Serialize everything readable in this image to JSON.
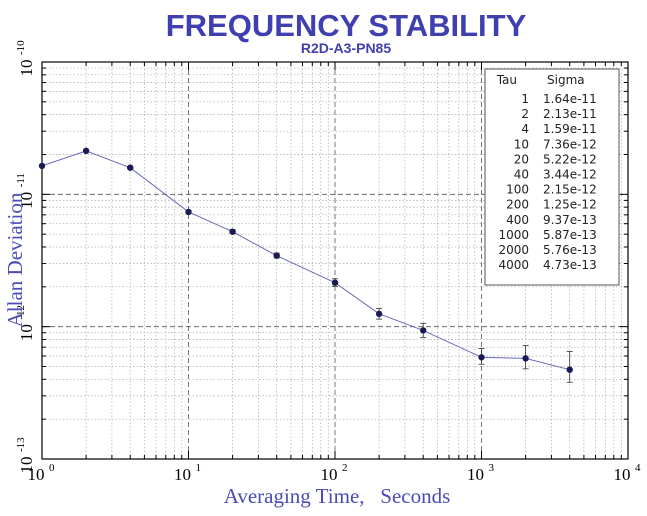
{
  "chart_data": {
    "type": "line",
    "title": "FREQUENCY STABILITY",
    "subtitle": "R2D-A3-PN85",
    "xlabel": "Averaging Time,   Seconds",
    "ylabel": "Allan Deviation",
    "xscale": "log",
    "yscale": "log",
    "xlim": [
      1,
      10000
    ],
    "ylim": [
      1e-13,
      1e-10
    ],
    "x_ticks": [
      {
        "value": 1,
        "base": "10",
        "exp": "0"
      },
      {
        "value": 10,
        "base": "10",
        "exp": "1"
      },
      {
        "value": 100,
        "base": "10",
        "exp": "2"
      },
      {
        "value": 1000,
        "base": "10",
        "exp": "3"
      },
      {
        "value": 10000,
        "base": "10",
        "exp": "4"
      }
    ],
    "y_ticks": [
      {
        "value": 1e-13,
        "base": "10",
        "exp": "-13"
      },
      {
        "value": 1e-12,
        "base": "10",
        "exp": "-12"
      },
      {
        "value": 1e-11,
        "base": "10",
        "exp": "-11"
      },
      {
        "value": 1e-10,
        "base": "10",
        "exp": "-10"
      }
    ],
    "grid": true,
    "series": [
      {
        "name": "Allan Deviation",
        "color": "#6a6ab8",
        "marker_color": "#1a1a55",
        "x": [
          1,
          2,
          4,
          10,
          20,
          40,
          100,
          200,
          400,
          1000,
          2000,
          4000
        ],
        "y": [
          1.64e-11,
          2.13e-11,
          1.59e-11,
          7.36e-12,
          5.22e-12,
          3.44e-12,
          2.15e-12,
          1.25e-12,
          9.37e-13,
          5.87e-13,
          5.76e-13,
          4.73e-13
        ],
        "error_low": [
          1.63e-11,
          2.11e-11,
          1.56e-11,
          7.2e-12,
          5.05e-12,
          3.3e-12,
          2.02e-12,
          1.14e-12,
          8.3e-13,
          5.2e-13,
          4.8e-13,
          3.8e-13
        ],
        "error_high": [
          1.65e-11,
          2.15e-11,
          1.62e-11,
          7.52e-12,
          5.4e-12,
          3.6e-12,
          2.3e-12,
          1.37e-12,
          1.06e-12,
          6.85e-13,
          7.2e-13,
          6.5e-13
        ]
      }
    ],
    "legend": {
      "placement": "top-right",
      "headers": [
        "Tau",
        "Sigma"
      ],
      "rows": [
        [
          "1",
          "1.64e-11"
        ],
        [
          "2",
          "2.13e-11"
        ],
        [
          "4",
          "1.59e-11"
        ],
        [
          "10",
          "7.36e-12"
        ],
        [
          "20",
          "5.22e-12"
        ],
        [
          "40",
          "3.44e-12"
        ],
        [
          "100",
          "2.15e-12"
        ],
        [
          "200",
          "1.25e-12"
        ],
        [
          "400",
          "9.37e-13"
        ],
        [
          "1000",
          "5.87e-13"
        ],
        [
          "2000",
          "5.76e-13"
        ],
        [
          "4000",
          "4.73e-13"
        ]
      ]
    },
    "colors": {
      "title": "#3f3fb0",
      "axis_label": "#4a4ab8",
      "line": "#6a6ab8",
      "marker": "#1a1a55",
      "grid_major": "#555555",
      "grid_minor": "#aaaaaa"
    }
  }
}
